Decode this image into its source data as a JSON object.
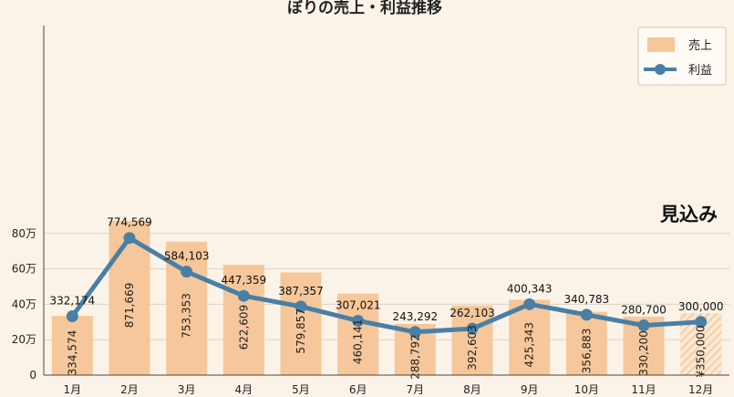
{
  "chart_data": {
    "type": "bar",
    "title": "ぼりの売上・利益推移",
    "categories": [
      "1月",
      "2月",
      "3月",
      "4月",
      "5月",
      "6月",
      "7月",
      "8月",
      "9月",
      "10月",
      "11月",
      "12月"
    ],
    "y_ticks": [
      "0",
      "20万",
      "40万",
      "60万",
      "80万"
    ],
    "ylim": [
      0,
      1000000
    ],
    "grid": "horizontal",
    "legend_position": "top-right",
    "series": [
      {
        "name": "売上",
        "type": "bar",
        "color": "#f6c79a",
        "values": [
          334574,
          871669,
          753353,
          622609,
          579857,
          460141,
          288792,
          392603,
          425343,
          356883,
          330200,
          350000
        ],
        "labels": [
          "334,574",
          "871,669",
          "753,353",
          "622,609",
          "579,857",
          "460,141",
          "288,792",
          "392,603",
          "425,343",
          "356,883",
          "330,200",
          "¥350,000"
        ]
      },
      {
        "name": "利益",
        "type": "line",
        "color": "#4a7fa5",
        "values": [
          332174,
          774569,
          584103,
          447359,
          387357,
          307021,
          243292,
          262103,
          400343,
          340783,
          280700,
          300000
        ],
        "labels": [
          "332,174",
          "774,569",
          "584,103",
          "447,359",
          "387,357",
          "307,021",
          "243,292",
          "262,103",
          "400,343",
          "340,783",
          "280,700",
          "300,000"
        ]
      }
    ],
    "annotation": "見込み"
  }
}
